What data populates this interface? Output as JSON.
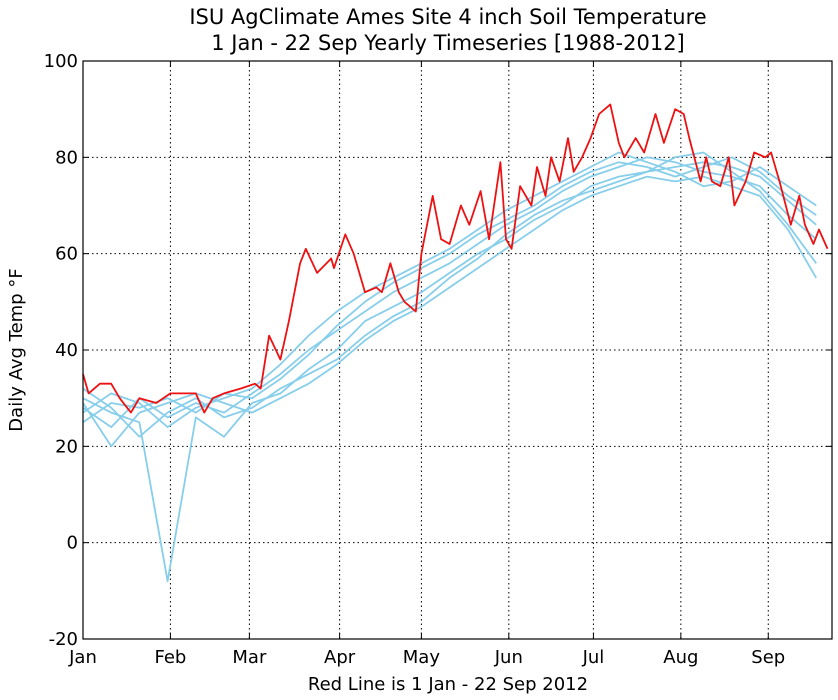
{
  "chart_data": {
    "type": "line",
    "title": "ISU AgClimate Ames Site 4 inch Soil Temperature",
    "subtitle": "1 Jan - 22 Sep Yearly Timeseries [1988-2012]",
    "ylabel": "Daily Avg Temp °F",
    "xlabel": "Red Line is 1 Jan - 22 Sep 2012",
    "xlim": [
      1,
      266.6
    ],
    "xticks": [
      {
        "value": 1,
        "label": "Jan"
      },
      {
        "value": 32,
        "label": "Feb"
      },
      {
        "value": 60,
        "label": "Mar"
      },
      {
        "value": 92,
        "label": "Apr"
      },
      {
        "value": 121,
        "label": "May"
      },
      {
        "value": 152,
        "label": "Jun"
      },
      {
        "value": 182,
        "label": "Jul"
      },
      {
        "value": 213,
        "label": "Aug"
      },
      {
        "value": 244,
        "label": "Sep"
      }
    ],
    "ylim": [
      -20,
      100
    ],
    "yticks": [
      -20,
      0,
      20,
      40,
      60,
      80,
      100
    ],
    "grid": true,
    "series": [
      {
        "color": "#87ceeb",
        "x": [
          1,
          11,
          21,
          31,
          41,
          51,
          61,
          71,
          81,
          91,
          101,
          111,
          121,
          131,
          141,
          151,
          161,
          171,
          181,
          191,
          201,
          211,
          221,
          231,
          241,
          251,
          261
        ],
        "values": [
          28,
          24,
          30,
          26,
          29,
          27,
          31,
          35,
          40,
          44,
          48,
          52,
          55,
          58,
          62,
          66,
          69,
          73,
          76,
          78,
          80,
          79,
          77,
          76,
          74,
          68,
          63
        ]
      },
      {
        "color": "#87ceeb",
        "x": [
          1,
          11,
          21,
          31,
          41,
          51,
          61,
          71,
          81,
          91,
          101,
          111,
          121,
          131,
          141,
          151,
          161,
          171,
          181,
          191,
          201,
          211,
          221,
          231,
          241,
          251,
          261
        ],
        "values": [
          30,
          27,
          25,
          -8,
          26,
          22,
          29,
          31,
          36,
          40,
          46,
          49,
          52,
          56,
          60,
          63,
          67,
          70,
          74,
          76,
          77,
          78,
          79,
          78,
          76,
          71,
          66
        ]
      },
      {
        "color": "#87ceeb",
        "x": [
          1,
          11,
          21,
          31,
          41,
          51,
          61,
          71,
          81,
          91,
          101,
          111,
          121,
          131,
          141,
          151,
          161,
          171,
          181,
          191,
          201,
          211,
          221,
          231,
          241,
          251,
          261
        ],
        "values": [
          25,
          29,
          28,
          30,
          27,
          31,
          30,
          34,
          39,
          45,
          50,
          54,
          57,
          60,
          64,
          67,
          70,
          74,
          77,
          79,
          78,
          76,
          78,
          80,
          77,
          72,
          68
        ]
      },
      {
        "color": "#87ceeb",
        "x": [
          1,
          11,
          21,
          31,
          41,
          51,
          61,
          71,
          81,
          91,
          101,
          111,
          121,
          131,
          141,
          151,
          161,
          171,
          181,
          191,
          201,
          211,
          221,
          231,
          241,
          251,
          261
        ],
        "values": [
          32,
          28,
          22,
          27,
          30,
          26,
          28,
          32,
          35,
          38,
          43,
          47,
          50,
          55,
          59,
          64,
          68,
          71,
          73,
          75,
          77,
          80,
          81,
          77,
          73,
          66,
          58
        ]
      },
      {
        "color": "#87ceeb",
        "x": [
          1,
          11,
          21,
          31,
          41,
          51,
          61,
          71,
          81,
          91,
          101,
          111,
          121,
          131,
          141,
          151,
          161,
          171,
          181,
          191,
          201,
          211,
          221,
          231,
          241,
          251,
          261
        ],
        "values": [
          27,
          31,
          29,
          24,
          28,
          30,
          32,
          37,
          43,
          48,
          52,
          55,
          58,
          61,
          65,
          69,
          72,
          75,
          78,
          81,
          79,
          77,
          74,
          75,
          78,
          74,
          70
        ]
      },
      {
        "color": "#87ceeb",
        "x": [
          1,
          11,
          21,
          31,
          41,
          51,
          61,
          71,
          81,
          91,
          101,
          111,
          121,
          131,
          141,
          151,
          161,
          171,
          181,
          191,
          201,
          211,
          221,
          231,
          241,
          251,
          261
        ],
        "values": [
          29,
          20,
          27,
          29,
          31,
          29,
          27,
          30,
          33,
          37,
          42,
          46,
          49,
          53,
          57,
          61,
          65,
          69,
          72,
          74,
          76,
          75,
          76,
          74,
          72,
          65,
          55
        ]
      },
      {
        "color": "#ee1111",
        "x": [
          1,
          3,
          7,
          11,
          14,
          18,
          21,
          27,
          32,
          37,
          41,
          44,
          47,
          51,
          57,
          62,
          64,
          67,
          71,
          74,
          78,
          80,
          84,
          89,
          90,
          94,
          97,
          101,
          105,
          107,
          110,
          113,
          115,
          119,
          121,
          125,
          128,
          131,
          135,
          138,
          142,
          145,
          149,
          151,
          153,
          156,
          160,
          162,
          165,
          167,
          170,
          173,
          175,
          178,
          181,
          184,
          188,
          191,
          193,
          197,
          200,
          204,
          207,
          211,
          214,
          216,
          220,
          222,
          224,
          227,
          230,
          232,
          236,
          239,
          243,
          245,
          248,
          252,
          255,
          257,
          260,
          262,
          265
        ],
        "values": [
          35,
          31,
          33,
          33,
          30,
          27,
          30,
          29,
          31,
          31,
          31,
          27,
          30,
          31,
          32,
          33,
          32,
          43,
          38,
          46,
          58,
          61,
          56,
          59,
          57,
          64,
          60,
          52,
          53,
          52,
          58,
          52,
          50,
          48,
          60,
          72,
          63,
          62,
          70,
          66,
          73,
          63,
          79,
          63,
          61,
          74,
          70,
          78,
          72,
          80,
          75,
          84,
          77,
          80,
          84,
          89,
          91,
          83,
          80,
          84,
          81,
          89,
          83,
          90,
          89,
          84,
          75,
          80,
          75,
          74,
          80,
          70,
          75,
          81,
          80,
          81,
          75,
          66,
          72,
          66,
          62,
          65,
          61
        ]
      }
    ]
  }
}
